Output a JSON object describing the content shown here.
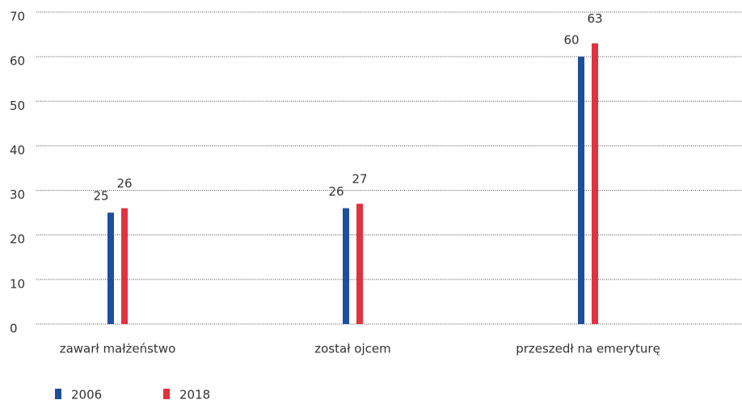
{
  "chart_data": {
    "type": "bar",
    "categories": [
      "zawarł małżeństwo",
      "został ojcem",
      "przeszedł na emeryturę"
    ],
    "series": [
      {
        "name": "2006",
        "color": "#1f4e9c",
        "values": [
          25,
          26,
          60
        ]
      },
      {
        "name": "2018",
        "color": "#e0323f",
        "values": [
          26,
          27,
          63
        ]
      }
    ],
    "ylim": [
      0,
      70
    ],
    "yticks": [
      0,
      10,
      20,
      30,
      40,
      50,
      60,
      70
    ],
    "grid": true,
    "legend": "bottom-left"
  }
}
